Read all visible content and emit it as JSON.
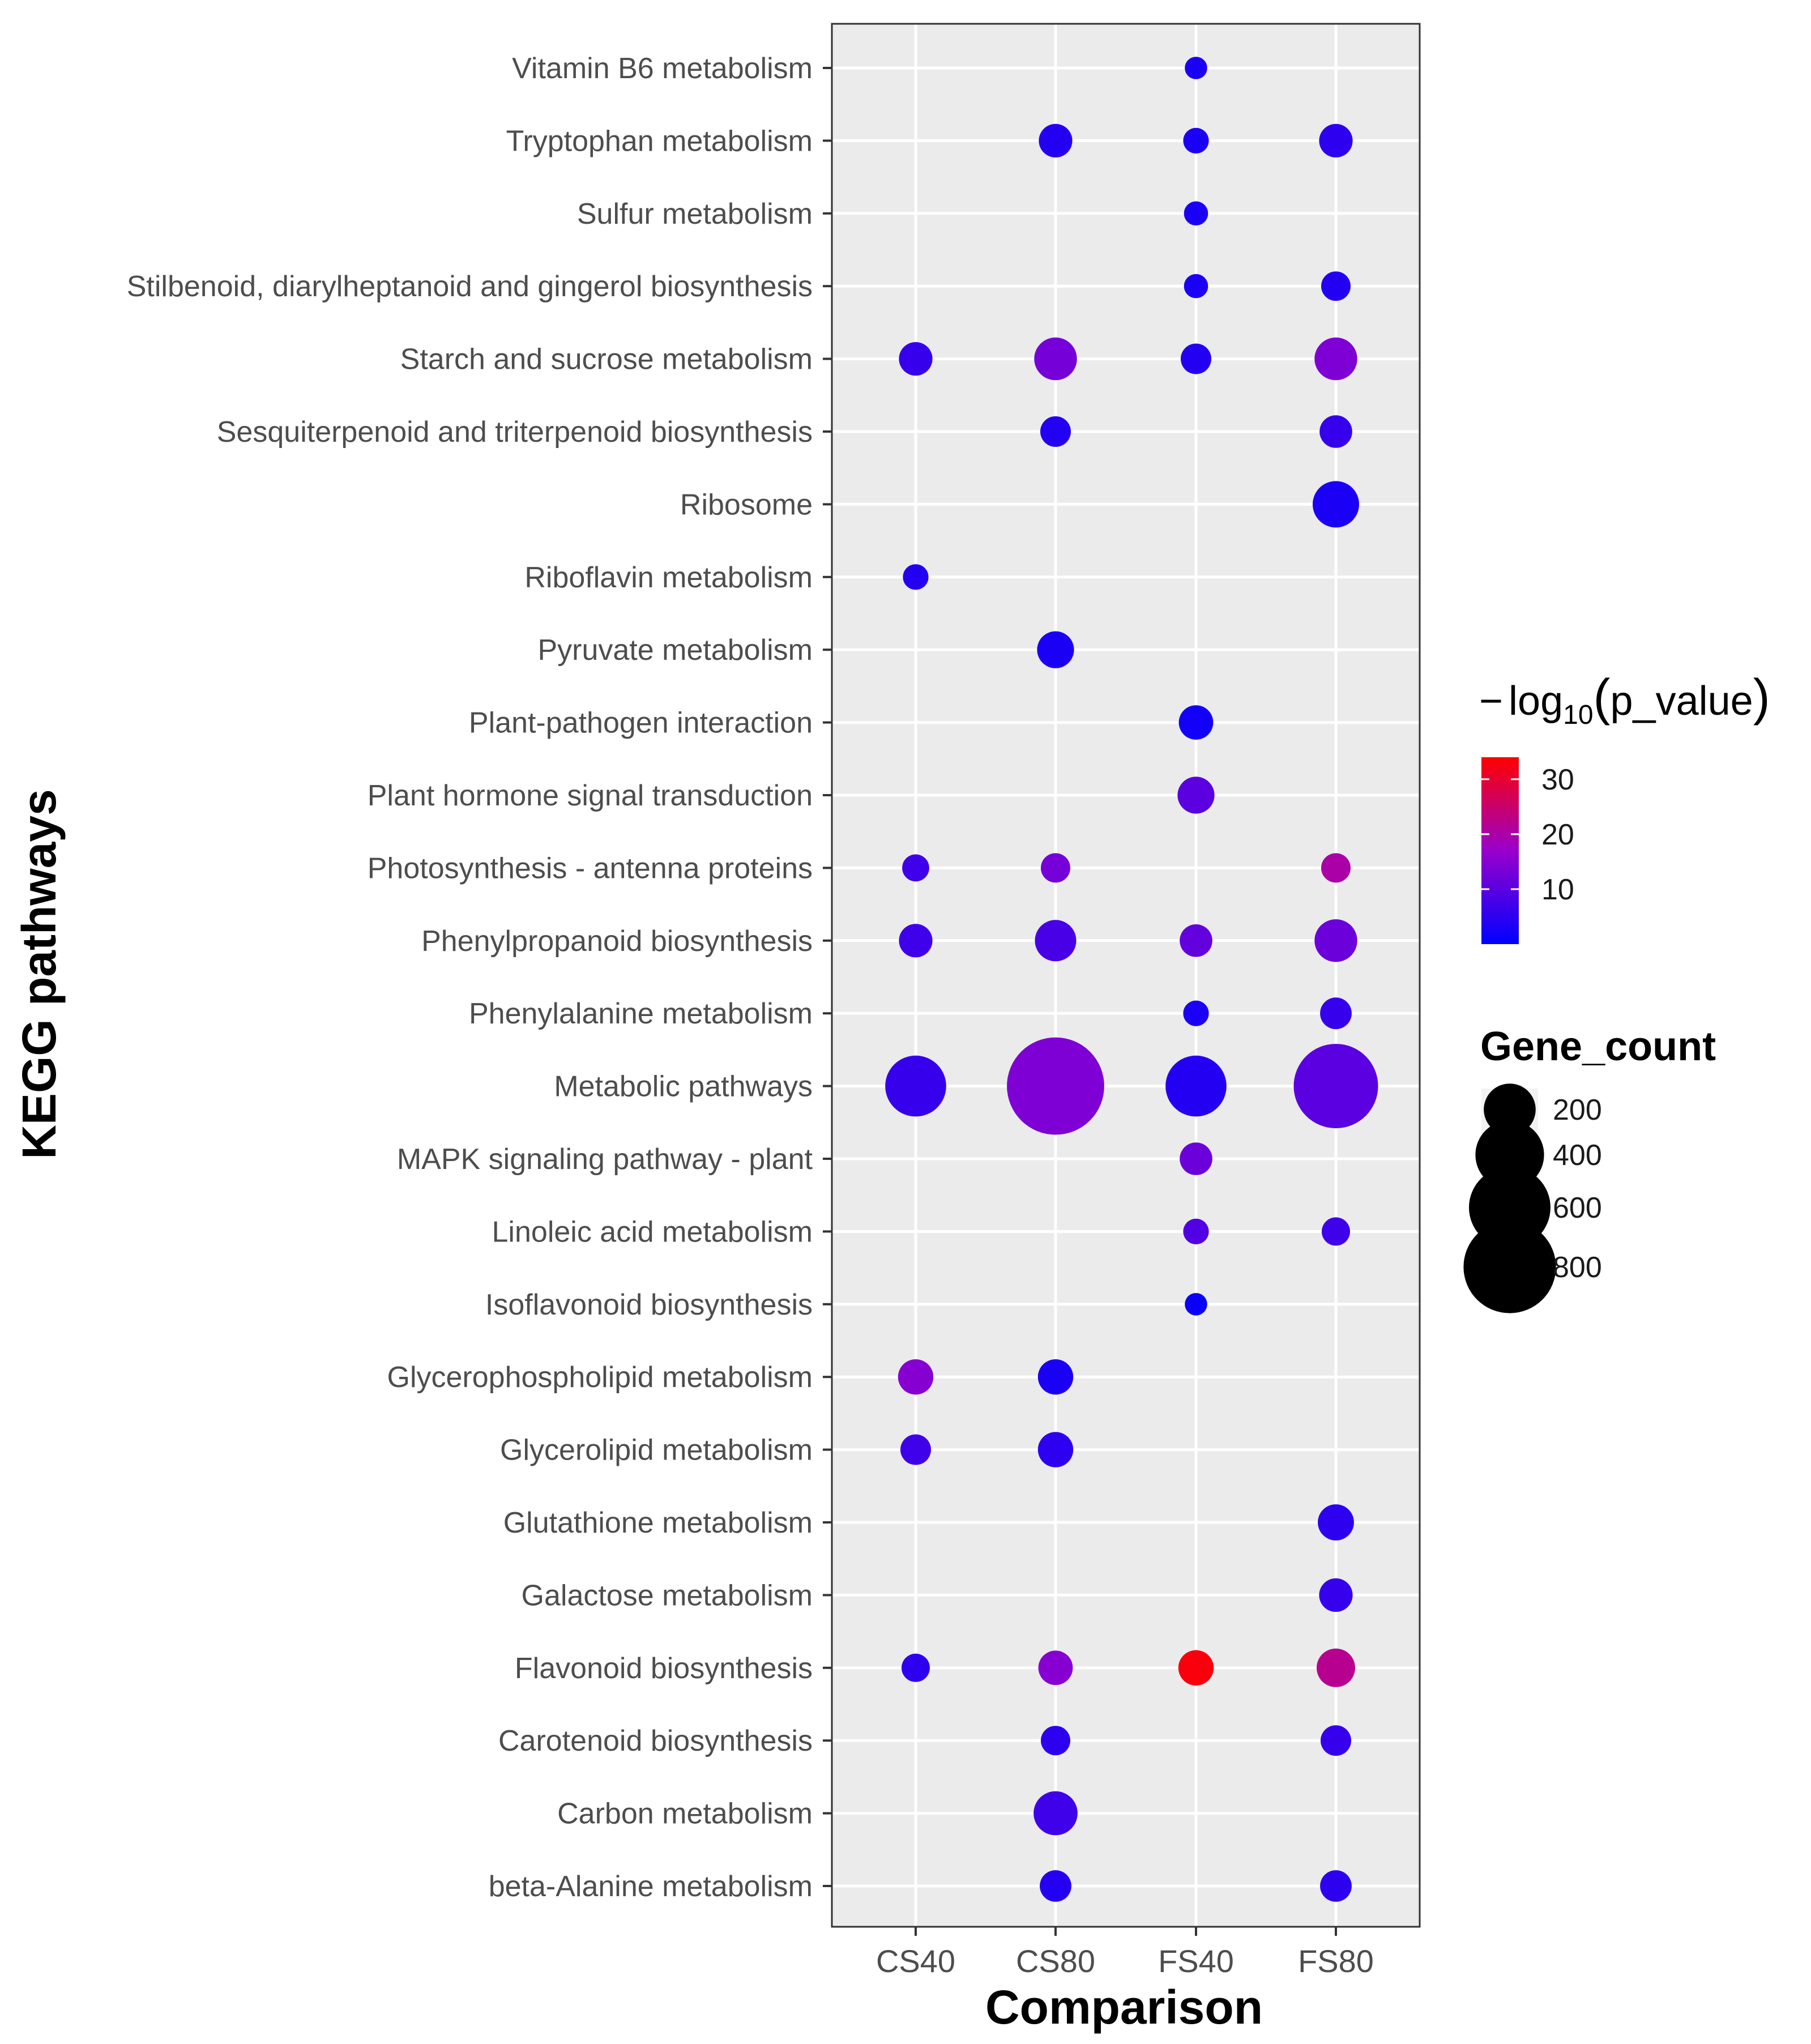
{
  "chart_data": {
    "type": "scatter",
    "subtype": "dot-plot",
    "xlabel": "Comparison",
    "ylabel": "KEGG pathways",
    "x_categories": [
      "CS40",
      "CS80",
      "FS40",
      "FS80"
    ],
    "y_categories": [
      "Vitamin B6 metabolism",
      "Tryptophan metabolism",
      "Sulfur metabolism",
      "Stilbenoid, diarylheptanoid and gingerol biosynthesis",
      "Starch and sucrose metabolism",
      "Sesquiterpenoid and triterpenoid biosynthesis",
      "Ribosome",
      "Riboflavin metabolism",
      "Pyruvate metabolism",
      "Plant-pathogen interaction",
      "Plant hormone signal transduction",
      "Photosynthesis - antenna proteins",
      "Phenylpropanoid biosynthesis",
      "Phenylalanine metabolism",
      "Metabolic pathways",
      "MAPK signaling pathway - plant",
      "Linoleic acid metabolism",
      "Isoflavonoid biosynthesis",
      "Glycerophospholipid metabolism",
      "Glycerolipid metabolism",
      "Glutathione metabolism",
      "Galactose metabolism",
      "Flavonoid biosynthesis",
      "Carotenoid biosynthesis",
      "Carbon metabolism",
      "beta-Alanine metabolism"
    ],
    "points": [
      {
        "pathway": "Vitamin B6 metabolism",
        "comparison": "FS40",
        "gene_count": 15,
        "neg_log10_p": 3
      },
      {
        "pathway": "Tryptophan metabolism",
        "comparison": "CS80",
        "gene_count": 60,
        "neg_log10_p": 4
      },
      {
        "pathway": "Tryptophan metabolism",
        "comparison": "FS40",
        "gene_count": 25,
        "neg_log10_p": 3
      },
      {
        "pathway": "Tryptophan metabolism",
        "comparison": "FS80",
        "gene_count": 60,
        "neg_log10_p": 5
      },
      {
        "pathway": "Sulfur metabolism",
        "comparison": "FS40",
        "gene_count": 20,
        "neg_log10_p": 3
      },
      {
        "pathway": "Stilbenoid, diarylheptanoid and gingerol biosynthesis",
        "comparison": "FS40",
        "gene_count": 20,
        "neg_log10_p": 3
      },
      {
        "pathway": "Stilbenoid, diarylheptanoid and gingerol biosynthesis",
        "comparison": "FS80",
        "gene_count": 40,
        "neg_log10_p": 4
      },
      {
        "pathway": "Starch and sucrose metabolism",
        "comparison": "CS40",
        "gene_count": 60,
        "neg_log10_p": 6
      },
      {
        "pathway": "Starch and sucrose metabolism",
        "comparison": "CS80",
        "gene_count": 120,
        "neg_log10_p": 13
      },
      {
        "pathway": "Starch and sucrose metabolism",
        "comparison": "FS40",
        "gene_count": 45,
        "neg_log10_p": 4
      },
      {
        "pathway": "Starch and sucrose metabolism",
        "comparison": "FS80",
        "gene_count": 120,
        "neg_log10_p": 14
      },
      {
        "pathway": "Sesquiterpenoid and triterpenoid biosynthesis",
        "comparison": "CS80",
        "gene_count": 45,
        "neg_log10_p": 4
      },
      {
        "pathway": "Sesquiterpenoid and triterpenoid biosynthesis",
        "comparison": "FS80",
        "gene_count": 55,
        "neg_log10_p": 6
      },
      {
        "pathway": "Ribosome",
        "comparison": "FS80",
        "gene_count": 150,
        "neg_log10_p": 3
      },
      {
        "pathway": "Riboflavin metabolism",
        "comparison": "CS40",
        "gene_count": 25,
        "neg_log10_p": 4
      },
      {
        "pathway": "Pyruvate metabolism",
        "comparison": "CS80",
        "gene_count": 80,
        "neg_log10_p": 3
      },
      {
        "pathway": "Plant-pathogen interaction",
        "comparison": "FS40",
        "gene_count": 65,
        "neg_log10_p": 2
      },
      {
        "pathway": "Plant hormone signal transduction",
        "comparison": "FS40",
        "gene_count": 80,
        "neg_log10_p": 10
      },
      {
        "pathway": "Photosynthesis - antenna proteins",
        "comparison": "CS40",
        "gene_count": 30,
        "neg_log10_p": 7
      },
      {
        "pathway": "Photosynthesis - antenna proteins",
        "comparison": "CS80",
        "gene_count": 40,
        "neg_log10_p": 13
      },
      {
        "pathway": "Photosynthesis - antenna proteins",
        "comparison": "FS80",
        "gene_count": 40,
        "neg_log10_p": 20
      },
      {
        "pathway": "Phenylpropanoid biosynthesis",
        "comparison": "CS40",
        "gene_count": 60,
        "neg_log10_p": 7
      },
      {
        "pathway": "Phenylpropanoid biosynthesis",
        "comparison": "CS80",
        "gene_count": 110,
        "neg_log10_p": 8
      },
      {
        "pathway": "Phenylpropanoid biosynthesis",
        "comparison": "FS40",
        "gene_count": 55,
        "neg_log10_p": 11
      },
      {
        "pathway": "Phenylpropanoid biosynthesis",
        "comparison": "FS80",
        "gene_count": 120,
        "neg_log10_p": 12
      },
      {
        "pathway": "Phenylalanine metabolism",
        "comparison": "FS40",
        "gene_count": 25,
        "neg_log10_p": 3
      },
      {
        "pathway": "Phenylalanine metabolism",
        "comparison": "FS80",
        "gene_count": 50,
        "neg_log10_p": 6
      },
      {
        "pathway": "Metabolic pathways",
        "comparison": "CS40",
        "gene_count": 300,
        "neg_log10_p": 6
      },
      {
        "pathway": "Metabolic pathways",
        "comparison": "CS80",
        "gene_count": 900,
        "neg_log10_p": 14
      },
      {
        "pathway": "Metabolic pathways",
        "comparison": "FS40",
        "gene_count": 300,
        "neg_log10_p": 4
      },
      {
        "pathway": "Metabolic pathways",
        "comparison": "FS80",
        "gene_count": 650,
        "neg_log10_p": 10
      },
      {
        "pathway": "MAPK signaling pathway - plant",
        "comparison": "FS40",
        "gene_count": 55,
        "neg_log10_p": 12
      },
      {
        "pathway": "Linoleic acid metabolism",
        "comparison": "FS40",
        "gene_count": 25,
        "neg_log10_p": 9
      },
      {
        "pathway": "Linoleic acid metabolism",
        "comparison": "FS80",
        "gene_count": 35,
        "neg_log10_p": 7
      },
      {
        "pathway": "Isoflavonoid biosynthesis",
        "comparison": "FS40",
        "gene_count": 15,
        "neg_log10_p": 1
      },
      {
        "pathway": "Glycerophospholipid metabolism",
        "comparison": "CS40",
        "gene_count": 70,
        "neg_log10_p": 15
      },
      {
        "pathway": "Glycerophospholipid metabolism",
        "comparison": "CS80",
        "gene_count": 70,
        "neg_log10_p": 3
      },
      {
        "pathway": "Glycerolipid metabolism",
        "comparison": "CS40",
        "gene_count": 45,
        "neg_log10_p": 7
      },
      {
        "pathway": "Glycerolipid metabolism",
        "comparison": "CS80",
        "gene_count": 70,
        "neg_log10_p": 5
      },
      {
        "pathway": "Glutathione metabolism",
        "comparison": "FS80",
        "gene_count": 75,
        "neg_log10_p": 5
      },
      {
        "pathway": "Galactose metabolism",
        "comparison": "FS80",
        "gene_count": 60,
        "neg_log10_p": 6
      },
      {
        "pathway": "Flavonoid biosynthesis",
        "comparison": "CS40",
        "gene_count": 35,
        "neg_log10_p": 5
      },
      {
        "pathway": "Flavonoid biosynthesis",
        "comparison": "CS80",
        "gene_count": 65,
        "neg_log10_p": 15
      },
      {
        "pathway": "Flavonoid biosynthesis",
        "comparison": "FS40",
        "gene_count": 70,
        "neg_log10_p": 33
      },
      {
        "pathway": "Flavonoid biosynthesis",
        "comparison": "FS80",
        "gene_count": 90,
        "neg_log10_p": 22
      },
      {
        "pathway": "Carotenoid biosynthesis",
        "comparison": "CS80",
        "gene_count": 40,
        "neg_log10_p": 5
      },
      {
        "pathway": "Carotenoid biosynthesis",
        "comparison": "FS80",
        "gene_count": 45,
        "neg_log10_p": 6
      },
      {
        "pathway": "Carbon metabolism",
        "comparison": "CS80",
        "gene_count": 130,
        "neg_log10_p": 7
      },
      {
        "pathway": "beta-Alanine metabolism",
        "comparison": "CS80",
        "gene_count": 50,
        "neg_log10_p": 4
      },
      {
        "pathway": "beta-Alanine metabolism",
        "comparison": "FS80",
        "gene_count": 50,
        "neg_log10_p": 5
      }
    ],
    "color_legend": {
      "title_prefix": "−",
      "title_log": "log",
      "title_sub": "10",
      "title_open": "(",
      "title_var": "p_value",
      "title_close": ")",
      "ticks": [
        "30",
        "20",
        "10"
      ],
      "range": [
        0,
        34
      ],
      "color_low": "#0000ff",
      "color_high": "#ff0000"
    },
    "size_legend": {
      "title": "Gene_count",
      "ticks": [
        "200",
        "400",
        "600",
        "800"
      ]
    },
    "background": "#ebebeb",
    "grid_color": "#ffffff"
  }
}
